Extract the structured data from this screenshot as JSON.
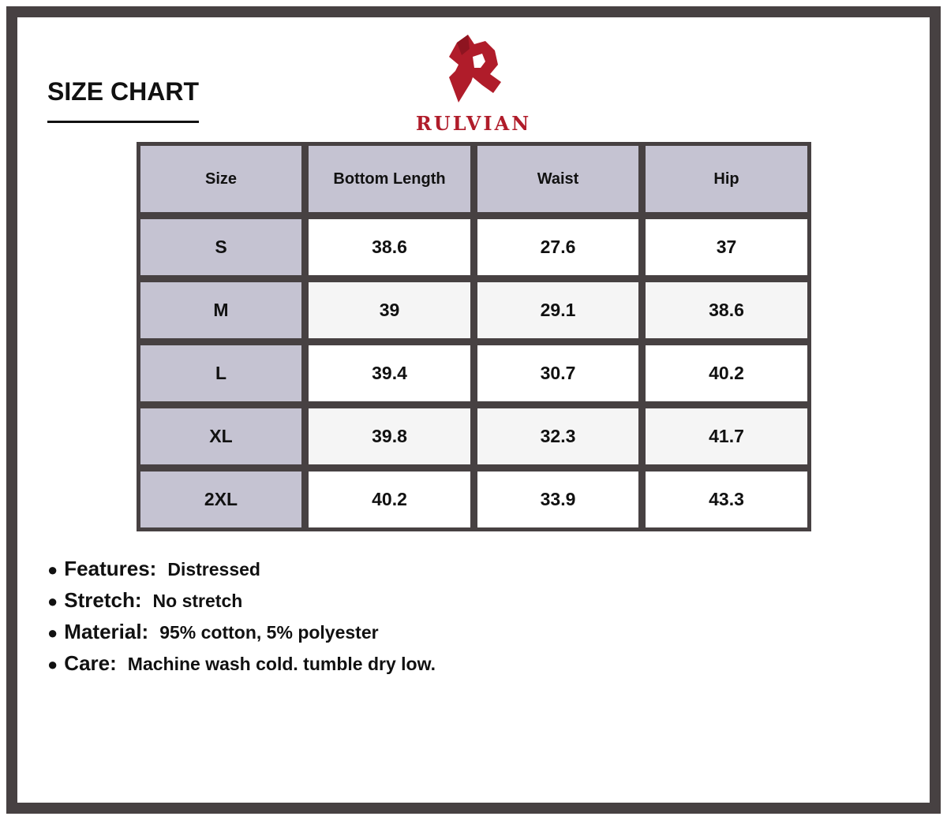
{
  "title": "SIZE CHART",
  "brand": {
    "name": "RULVIAN",
    "color": "#b01c2a"
  },
  "table": {
    "headers": [
      "Size",
      "Bottom Length",
      "Waist",
      "Hip"
    ],
    "rows": [
      [
        "S",
        "38.6",
        "27.6",
        "37"
      ],
      [
        "M",
        "39",
        "29.1",
        "38.6"
      ],
      [
        "L",
        "39.4",
        "30.7",
        "40.2"
      ],
      [
        "XL",
        "39.8",
        "32.3",
        "41.7"
      ],
      [
        "2XL",
        "40.2",
        "33.9",
        "43.3"
      ]
    ]
  },
  "specs": [
    {
      "label": "Features:",
      "value": "Distressed"
    },
    {
      "label": "Stretch:",
      "value": "No stretch"
    },
    {
      "label": "Material:",
      "value": "95% cotton, 5% polyester"
    },
    {
      "label": "Care:",
      "value": "Machine wash cold. tumble dry low."
    }
  ],
  "colors": {
    "frame": "#474142",
    "header_fill": "#c5c3d2"
  }
}
